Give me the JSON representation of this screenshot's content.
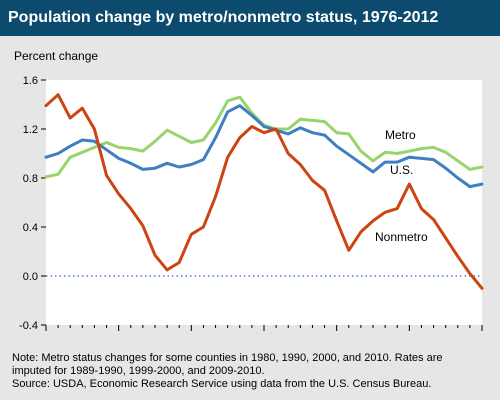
{
  "header": {
    "title": "Population change by metro/nonmetro status, 1976-2012"
  },
  "notes": {
    "line1": "Note: Metro status changes for some counties in 1980, 1990, 2000, and 2010. Rates are",
    "line2": "imputed for 1989-1990, 1999-2000, and 2009-2010.",
    "line3": "Source: USDA, Economic Research Service using data from the U.S. Census Bureau."
  },
  "colors": {
    "metro": "#99d46a",
    "us": "#3d7fc1",
    "nonmetro": "#cc4411",
    "zero_line": "#4a7fd4",
    "plot_bg": "#ffffff",
    "title_bg": "#0c4a6e",
    "frame_bg": "#e6e6e6"
  },
  "chart_data": {
    "type": "line",
    "title": "Population change by metro/nonmetro status, 1976-2012",
    "ylabel": "Percent change",
    "xlabel": "",
    "xlim": [
      1976,
      2012
    ],
    "ylim": [
      -0.4,
      1.6
    ],
    "x_ticks": [
      1976,
      1982,
      1988,
      1994,
      2000,
      2006,
      2012
    ],
    "y_ticks": [
      -0.4,
      0.0,
      0.4,
      0.8,
      1.2,
      1.6
    ],
    "y_tick_labels": [
      "-0.4",
      "0.0",
      "0.4",
      "0.8",
      "1.2",
      "1.6"
    ],
    "grid": false,
    "zero_line": {
      "y": 0.0,
      "style": "dotted"
    },
    "x": [
      1976,
      1977,
      1978,
      1979,
      1980,
      1981,
      1982,
      1983,
      1984,
      1985,
      1986,
      1987,
      1988,
      1989,
      1990,
      1991,
      1992,
      1993,
      1994,
      1995,
      1996,
      1997,
      1998,
      1999,
      2000,
      2001,
      2002,
      2003,
      2004,
      2005,
      2006,
      2007,
      2008,
      2009,
      2010,
      2011,
      2012
    ],
    "series": [
      {
        "name": "Metro",
        "color_key": "metro",
        "values": [
          0.81,
          0.83,
          0.97,
          1.01,
          1.05,
          1.09,
          1.05,
          1.04,
          1.02,
          1.1,
          1.19,
          1.14,
          1.09,
          1.11,
          1.25,
          1.43,
          1.46,
          1.33,
          1.23,
          1.2,
          1.2,
          1.28,
          1.27,
          1.26,
          1.17,
          1.16,
          1.02,
          0.94,
          1.01,
          1.0,
          1.02,
          1.04,
          1.05,
          1.01,
          0.94,
          0.87,
          0.89
        ]
      },
      {
        "name": "U.S.",
        "color_key": "us",
        "values": [
          0.97,
          1.0,
          1.06,
          1.11,
          1.1,
          1.03,
          0.96,
          0.92,
          0.87,
          0.88,
          0.92,
          0.89,
          0.91,
          0.95,
          1.13,
          1.34,
          1.39,
          1.31,
          1.22,
          1.19,
          1.16,
          1.21,
          1.17,
          1.15,
          1.06,
          0.99,
          0.92,
          0.85,
          0.93,
          0.93,
          0.97,
          0.96,
          0.95,
          0.88,
          0.8,
          0.73,
          0.75
        ]
      },
      {
        "name": "Nonmetro",
        "color_key": "nonmetro",
        "values": [
          1.39,
          1.48,
          1.29,
          1.37,
          1.2,
          0.82,
          0.67,
          0.55,
          0.41,
          0.17,
          0.05,
          0.11,
          0.34,
          0.4,
          0.65,
          0.97,
          1.13,
          1.22,
          1.17,
          1.2,
          1.0,
          0.91,
          0.78,
          0.7,
          0.45,
          0.21,
          0.36,
          0.45,
          0.52,
          0.55,
          0.75,
          0.55,
          0.46,
          0.31,
          0.16,
          0.02,
          -0.1
        ]
      }
    ],
    "series_labels": {
      "metro": "Metro",
      "us": "U.S.",
      "nonmetro": "Nonmetro"
    }
  }
}
